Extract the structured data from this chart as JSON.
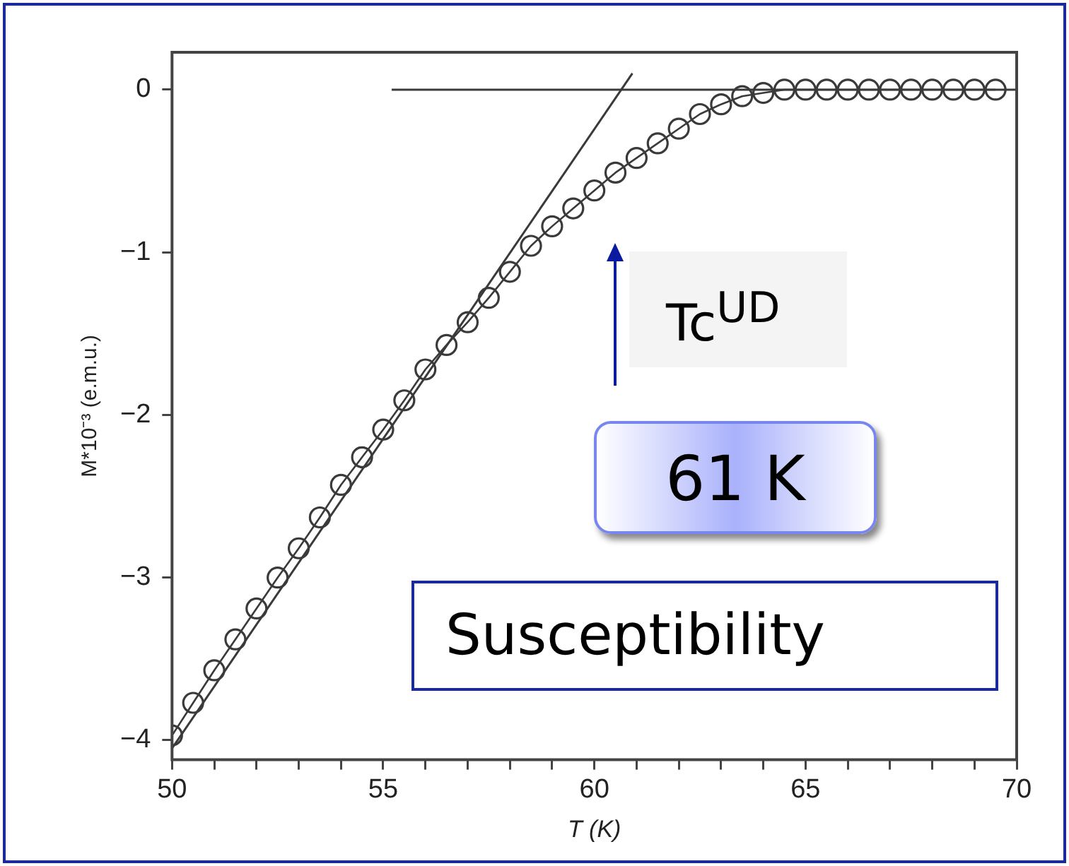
{
  "chart_data": {
    "type": "line",
    "xlabel": "T (K)",
    "ylabel": "M*10⁻³ (e.m.u.)",
    "xlim": [
      50,
      70
    ],
    "ylim": [
      -4.12,
      0.23
    ],
    "xticks": [
      50,
      {
        "value": 51,
        "label": null
      },
      {
        "value": 52,
        "label": null
      },
      {
        "value": 53,
        "label": null
      },
      {
        "value": 54,
        "label": null
      },
      55,
      {
        "value": 56,
        "label": null
      },
      {
        "value": 57,
        "label": null
      },
      {
        "value": 58,
        "label": null
      },
      {
        "value": 59,
        "label": null
      },
      60,
      {
        "value": 61,
        "label": null
      },
      {
        "value": 62,
        "label": null
      },
      {
        "value": 63,
        "label": null
      },
      {
        "value": 64,
        "label": null
      },
      65,
      {
        "value": 66,
        "label": null
      },
      {
        "value": 67,
        "label": null
      },
      {
        "value": 68,
        "label": null
      },
      {
        "value": 69,
        "label": null
      },
      70
    ],
    "yticks": [
      {
        "value": 0,
        "label": "0"
      },
      {
        "value": -1,
        "label": "−1"
      },
      {
        "value": -2,
        "label": "−2"
      },
      {
        "value": -3,
        "label": "−3"
      },
      {
        "value": -4,
        "label": "−4"
      }
    ],
    "grid": false,
    "legend": false,
    "series": [
      {
        "color": "#3a3a3a",
        "marker": "circle",
        "x": [
          50,
          50.5,
          51,
          51.5,
          52,
          52.5,
          53,
          53.5,
          54,
          54.5,
          55,
          55.5,
          56,
          56.5,
          57,
          57.5,
          58,
          58.5,
          59,
          59.5,
          60,
          60.5,
          61,
          61.5,
          62,
          62.5,
          63,
          63.5,
          64,
          64.5,
          65,
          65.5,
          66,
          66.5,
          67,
          67.5,
          68,
          68.5,
          69,
          69.5
        ],
        "values": [
          -3.97,
          -3.77,
          -3.57,
          -3.38,
          -3.19,
          -3.0,
          -2.82,
          -2.63,
          -2.43,
          -2.26,
          -2.09,
          -1.91,
          -1.72,
          -1.57,
          -1.43,
          -1.28,
          -1.12,
          -0.96,
          -0.84,
          -0.73,
          -0.62,
          -0.51,
          -0.42,
          -0.33,
          -0.24,
          -0.15,
          -0.09,
          -0.04,
          -0.02,
          0,
          0,
          0,
          0,
          0,
          0,
          0,
          0,
          0,
          0,
          0
        ]
      },
      {
        "color": "#3a3a3a",
        "marker": "none",
        "x": [
          50,
          60.9
        ],
        "values": [
          -4.05,
          0.1
        ]
      },
      {
        "color": "#3a3a3a",
        "marker": "none",
        "x": [
          55.2,
          70
        ],
        "values": [
          0,
          0
        ]
      }
    ],
    "annotations": [
      "Tc$^{UD}$",
      "61 K",
      "Susceptibility"
    ]
  }
}
